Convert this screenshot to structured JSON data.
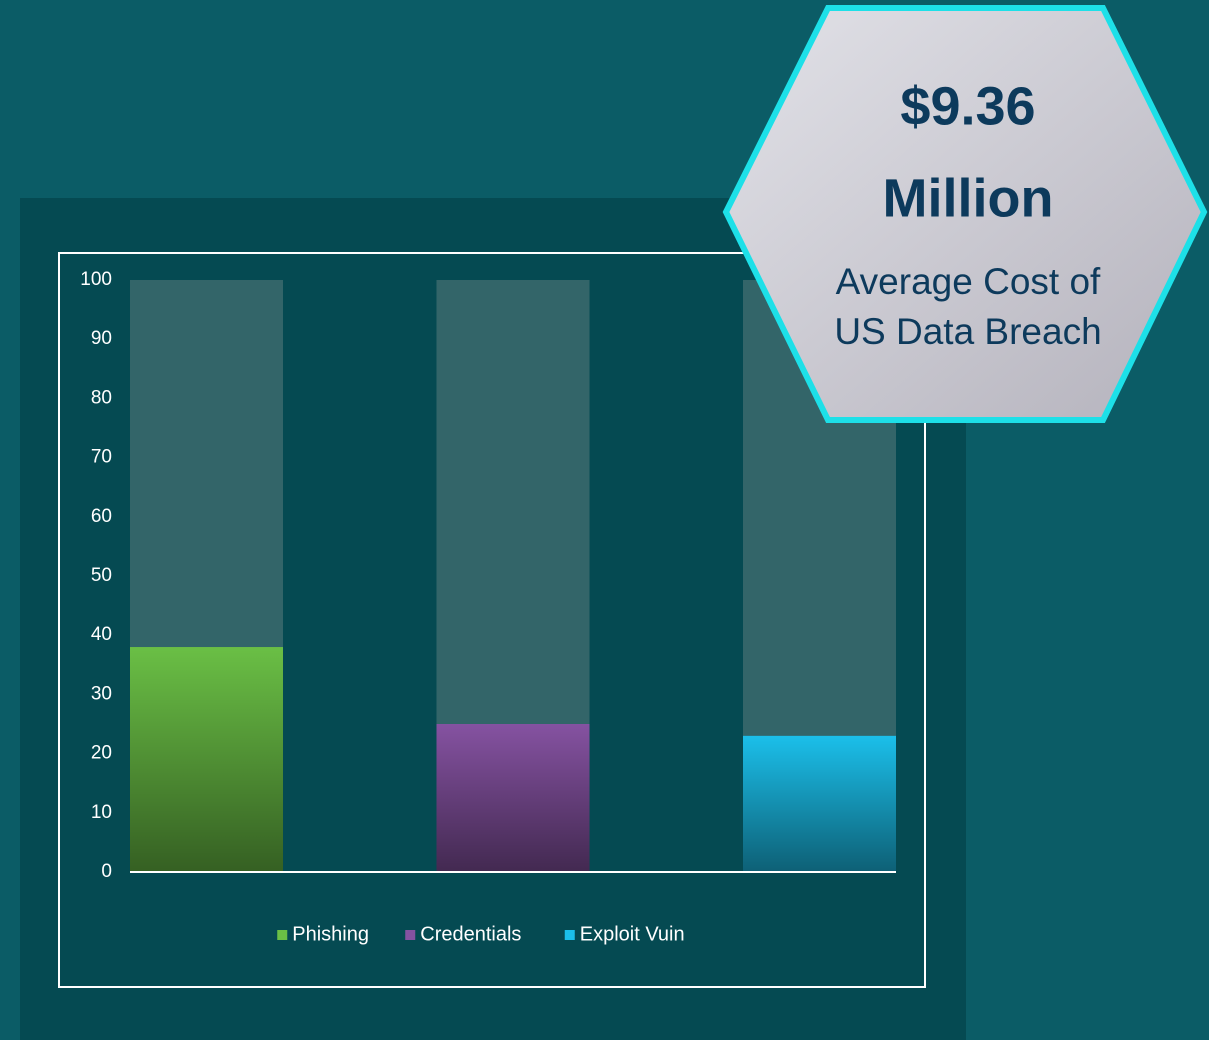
{
  "chart_data": {
    "type": "bar",
    "categories": [
      "Phishing",
      "Credentials",
      "Exploit Vuin"
    ],
    "values": [
      38,
      25,
      23
    ],
    "colors": [
      "#6abf45",
      "#8552a1",
      "#1bbfea"
    ],
    "ylim": [
      0,
      100
    ],
    "yticks": [
      0,
      10,
      20,
      30,
      40,
      50,
      60,
      70,
      80,
      90,
      100
    ],
    "legend": "bottom",
    "annotations": [
      "$9.36",
      "Million",
      "Average Cost of",
      "US Data Breach"
    ]
  }
}
